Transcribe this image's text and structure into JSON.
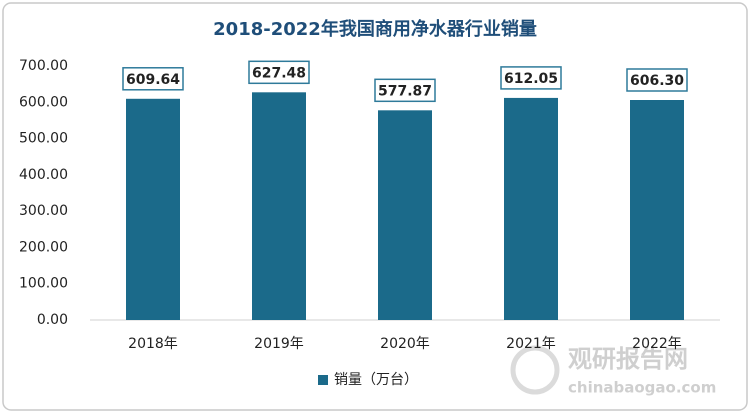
{
  "chart_data": {
    "type": "bar",
    "title": "2018-2022年我国商用净水器行业销量",
    "categories": [
      "2018年",
      "2019年",
      "2020年",
      "2021年",
      "2022年"
    ],
    "series": [
      {
        "name": "销量（万台）",
        "color": "#1b6a8a",
        "values": [
          609.64,
          627.48,
          577.87,
          612.05,
          606.3
        ],
        "value_labels": [
          "609.64",
          "627.48",
          "577.87",
          "612.05",
          "606.30"
        ]
      }
    ],
    "ylim": [
      0,
      700
    ],
    "yticks": [
      {
        "value": 0,
        "label": "0.00"
      },
      {
        "value": 100,
        "label": "100.00"
      },
      {
        "value": 200,
        "label": "200.00"
      },
      {
        "value": 300,
        "label": "300.00"
      },
      {
        "value": 400,
        "label": "400.00"
      },
      {
        "value": 500,
        "label": "500.00"
      },
      {
        "value": 600,
        "label": "600.00"
      },
      {
        "value": 700,
        "label": "700.00"
      }
    ],
    "grid": false,
    "legend": "bottom",
    "watermark": {
      "name": "观研报告网",
      "url": "chinabaogao.com"
    }
  }
}
